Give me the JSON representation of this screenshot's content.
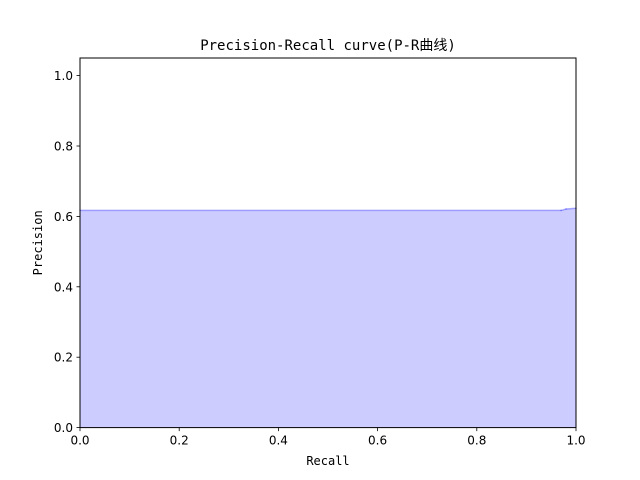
{
  "chart_data": {
    "type": "area",
    "title": "Precision-Recall curve(P-R曲线)",
    "xlabel": "Recall",
    "ylabel": "Precision",
    "xlim": [
      0.0,
      1.0
    ],
    "ylim": [
      0.0,
      1.05
    ],
    "xticks": [
      "0.0",
      "0.2",
      "0.4",
      "0.6",
      "0.8",
      "1.0"
    ],
    "yticks": [
      "0.0",
      "0.2",
      "0.4",
      "0.6",
      "0.8",
      "1.0"
    ],
    "grid": false,
    "series": [
      {
        "x": [
          0.0,
          0.97,
          0.98,
          1.0
        ],
        "y": [
          0.617,
          0.617,
          0.621,
          0.623
        ],
        "color": "#0000ff",
        "fill_color": "#ccccff"
      }
    ]
  }
}
